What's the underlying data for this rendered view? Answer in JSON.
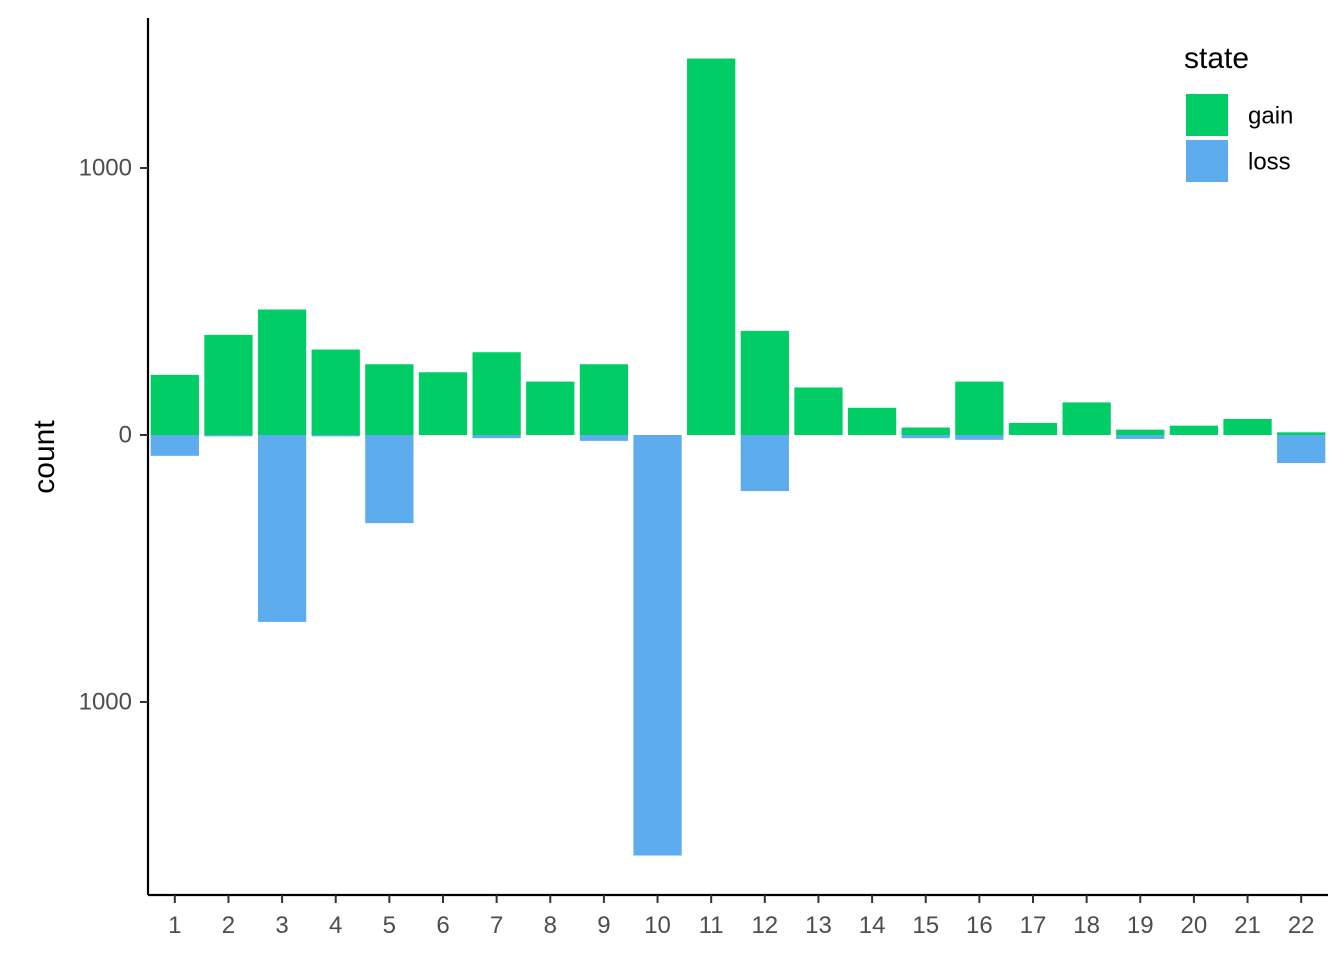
{
  "chart_data": {
    "type": "bar",
    "stacked": true,
    "categories": [
      "1",
      "2",
      "3",
      "4",
      "5",
      "6",
      "7",
      "8",
      "9",
      "10",
      "11",
      "12",
      "13",
      "14",
      "15",
      "16",
      "17",
      "18",
      "19",
      "20",
      "21",
      "22"
    ],
    "series": [
      {
        "name": "gain",
        "color": "#00CD66",
        "values": [
          225,
          375,
          470,
          320,
          265,
          235,
          310,
          200,
          265,
          0,
          1410,
          390,
          178,
          102,
          28,
          200,
          45,
          122,
          20,
          35,
          60,
          10
        ]
      },
      {
        "name": "loss",
        "color": "#5DADEE",
        "values": [
          -78,
          -5,
          -700,
          -5,
          -330,
          0,
          -12,
          0,
          -22,
          -1575,
          0,
          -210,
          0,
          0,
          -12,
          -18,
          0,
          0,
          -15,
          0,
          0,
          -105
        ]
      }
    ],
    "xlabel": "",
    "ylabel": "count",
    "ylim": [
      -1710,
      1560
    ],
    "yticks": [
      {
        "value": 1000,
        "label": "1000"
      },
      {
        "value": 0,
        "label": "0"
      },
      {
        "value": -1000,
        "label": "1000"
      }
    ],
    "grid": false,
    "legend": {
      "title": "state",
      "position": "top-right"
    }
  }
}
